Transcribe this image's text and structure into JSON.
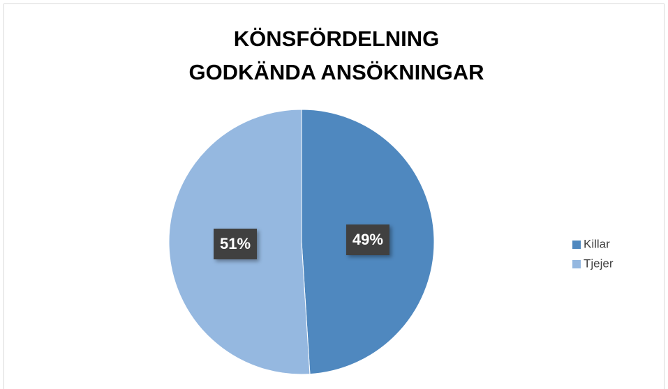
{
  "chart_data": {
    "type": "pie",
    "title": [
      "KÖNSFÖRDELNING",
      "GODKÄNDA ANSÖKNINGAR"
    ],
    "categories": [
      "Killar",
      "Tjejer"
    ],
    "values": [
      49,
      51
    ],
    "value_labels": [
      "49%",
      "51%"
    ],
    "colors": [
      "#4f88bf",
      "#95b8e0"
    ],
    "legend": "right"
  }
}
